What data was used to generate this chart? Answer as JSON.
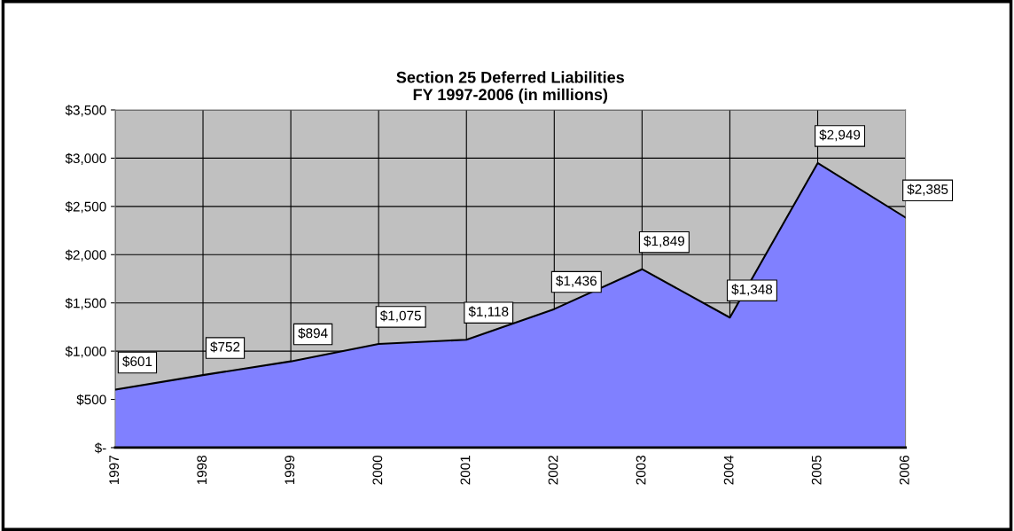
{
  "chart_data": {
    "type": "area",
    "title": "Section 25 Deferred Liabilities\nFY 1997-2006 (in millions)",
    "categories": [
      "1997",
      "1998",
      "1999",
      "2000",
      "2001",
      "2002",
      "2003",
      "2004",
      "2005",
      "2006"
    ],
    "series": [
      {
        "color": "#8080ff",
        "values": [
          601,
          752,
          894,
          1075,
          1118,
          1436,
          1849,
          1348,
          2949,
          2385
        ],
        "value_labels": [
          "$601",
          "$752",
          "$894",
          "$1,075",
          "$1,118",
          "$1,436",
          "$1,849",
          "$1,348",
          "$2,949",
          "$2,385"
        ]
      }
    ],
    "ylim": [
      0,
      3500
    ],
    "yticks": [
      {
        "value": 0,
        "label": "$-"
      },
      {
        "value": 500,
        "label": "$500"
      },
      {
        "value": 1000,
        "label": "$1,000"
      },
      {
        "value": 1500,
        "label": "$1,500"
      },
      {
        "value": 2000,
        "label": "$2,000"
      },
      {
        "value": 2500,
        "label": "$2,500"
      },
      {
        "value": 3000,
        "label": "$3,000"
      },
      {
        "value": 3500,
        "label": "$3,500"
      }
    ],
    "grid": true
  }
}
